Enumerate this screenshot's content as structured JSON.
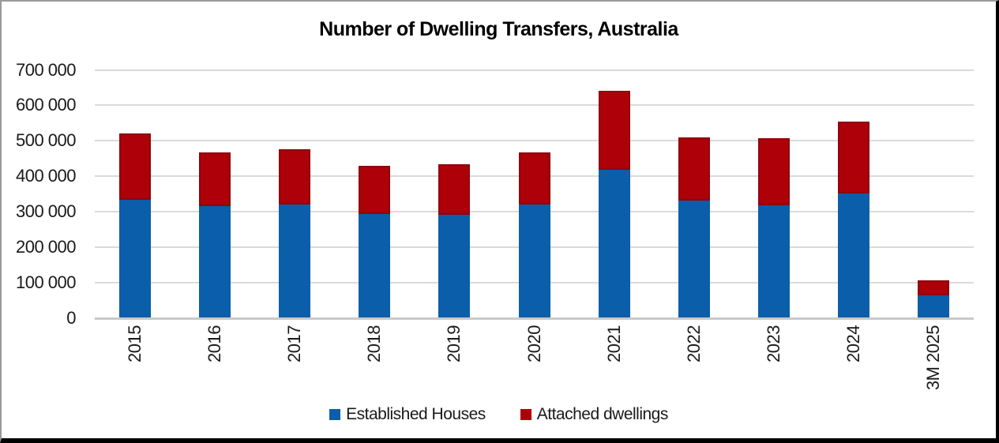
{
  "chart_data": {
    "type": "bar",
    "stacked": true,
    "title": "Number of Dwelling Transfers, Australia",
    "categories": [
      "2015",
      "2016",
      "2017",
      "2018",
      "2019",
      "2020",
      "2021",
      "2022",
      "2023",
      "2024",
      "3M 2025"
    ],
    "series": [
      {
        "name": "Established Houses",
        "color": "#0b5ea9",
        "values": [
          333000,
          316000,
          321000,
          294000,
          292000,
          320000,
          419000,
          330000,
          318000,
          352000,
          64000
        ]
      },
      {
        "name": "Attached dwellings",
        "color": "#ad0009",
        "values": [
          187000,
          152000,
          156000,
          136000,
          141000,
          148000,
          222000,
          179000,
          189000,
          203000,
          41000
        ]
      }
    ],
    "totals": [
      520000,
      468000,
      477000,
      430000,
      433000,
      468000,
      641000,
      509000,
      507000,
      555000,
      105000
    ],
    "xlabel": "",
    "ylabel": "",
    "ylim": [
      0,
      700000
    ],
    "ytick_step": 100000,
    "ytick_labels": [
      "0",
      "100 000",
      "200 000",
      "300 000",
      "400 000",
      "500 000",
      "600 000",
      "700 000"
    ],
    "grid": "horizontal",
    "legend_position": "bottom-center"
  },
  "style": {
    "gridline_color": "#dadada",
    "axis_line_color": "#c9c9c9",
    "text_color": "#1a1a1a",
    "attached_border_color": "#8f040c",
    "frame_border_color": "#000000",
    "background": "#ffffff"
  }
}
